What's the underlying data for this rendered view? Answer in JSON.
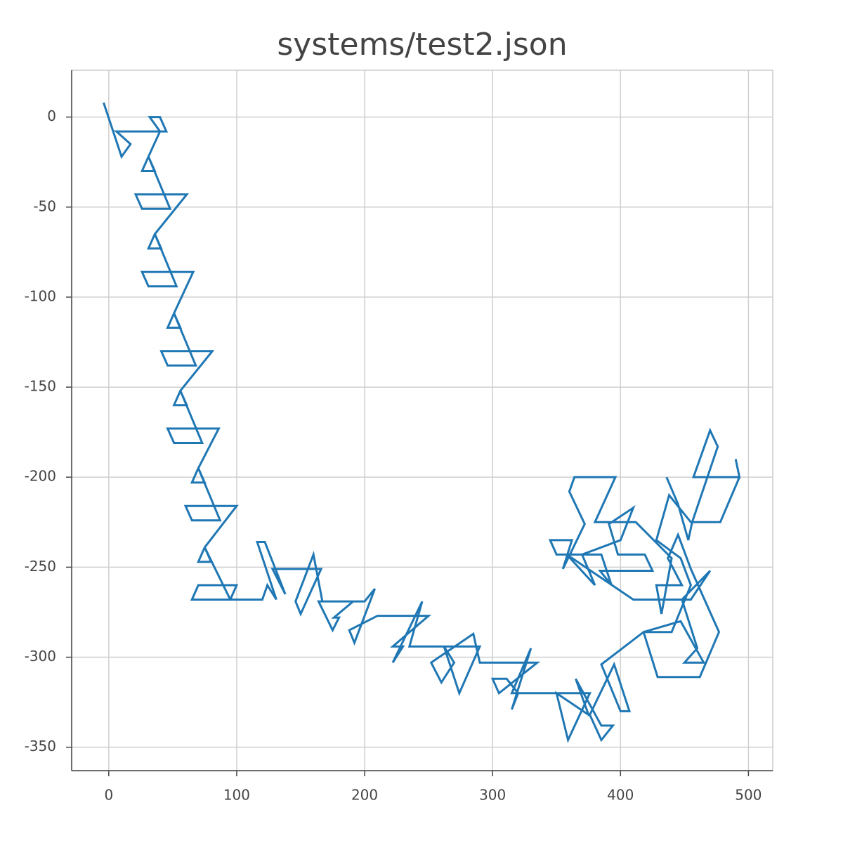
{
  "chart_data": {
    "type": "line",
    "title": "systems/test2.json",
    "x": [
      -4,
      10,
      17,
      6,
      45,
      40,
      32,
      40,
      31,
      26,
      36,
      31,
      48,
      26,
      21,
      61,
      36,
      31,
      41,
      36,
      53,
      31,
      26,
      66,
      51,
      46,
      56,
      51,
      68,
      46,
      41,
      81,
      56,
      51,
      61,
      56,
      73,
      51,
      46,
      86,
      70,
      65,
      75,
      70,
      87,
      65,
      60,
      100,
      75,
      70,
      80,
      75,
      95,
      65,
      70,
      100,
      95,
      120,
      124,
      131,
      116,
      122,
      138,
      128,
      166,
      150,
      146,
      160,
      167,
      191,
      176,
      180,
      175,
      164,
      200,
      208,
      192,
      188,
      210,
      250,
      222,
      230,
      222,
      245,
      235,
      290,
      274,
      262,
      270,
      260,
      252,
      285,
      290,
      335,
      305,
      300,
      311,
      320,
      315,
      330,
      315,
      376,
      359,
      350,
      375,
      365,
      385,
      394,
      385,
      376,
      395,
      407,
      400,
      385,
      418,
      429,
      462,
      477,
      455,
      445,
      437,
      448,
      428,
      432,
      440,
      412,
      380,
      396,
      364,
      360,
      372,
      355,
      362,
      345,
      350,
      385,
      393,
      384,
      425,
      419,
      398,
      391,
      410,
      400,
      370,
      380,
      358,
      410,
      455,
      470,
      448,
      460,
      450,
      465,
      447,
      418,
      440,
      455,
      447,
      428,
      438,
      455,
      478,
      493,
      490,
      493,
      457,
      470,
      476,
      456,
      453,
      445,
      436
    ],
    "series": [
      {
        "name": "systems/test2.json",
        "color": "#1f77b4",
        "values": [
          8,
          -22,
          -15,
          -8,
          -8,
          0,
          0,
          -8,
          -22,
          -30,
          -30,
          -22,
          -51,
          -51,
          -43,
          -43,
          -65,
          -73,
          -73,
          -65,
          -94,
          -94,
          -86,
          -86,
          -109,
          -117,
          -117,
          -109,
          -138,
          -138,
          -130,
          -130,
          -152,
          -160,
          -160,
          -152,
          -181,
          -181,
          -173,
          -173,
          -195,
          -203,
          -203,
          -195,
          -224,
          -224,
          -216,
          -216,
          -239,
          -247,
          -247,
          -239,
          -268,
          -268,
          -260,
          -260,
          -268,
          -268,
          -260,
          -268,
          -236,
          -236,
          -265,
          -251,
          -251,
          -276,
          -269,
          -243,
          -269,
          -269,
          -278,
          -278,
          -285,
          -269,
          -269,
          -262,
          -292,
          -285,
          -277,
          -277,
          -294,
          -294,
          -303,
          -269,
          -294,
          -294,
          -320,
          -294,
          -303,
          -314,
          -303,
          -287,
          -303,
          -303,
          -320,
          -312,
          -312,
          -320,
          -329,
          -295,
          -320,
          -320,
          -346,
          -320,
          -332,
          -312,
          -338,
          -338,
          -346,
          -332,
          -304,
          -330,
          -330,
          -304,
          -286,
          -311,
          -311,
          -286,
          -251,
          -232,
          -245,
          -260,
          -260,
          -276,
          -245,
          -225,
          -225,
          -200,
          -200,
          -208,
          -226,
          -251,
          -235,
          -235,
          -243,
          -243,
          -260,
          -252,
          -252,
          -243,
          -243,
          -226,
          -217,
          -235,
          -243,
          -260,
          -243,
          -268,
          -268,
          -252,
          -268,
          -295,
          -303,
          -303,
          -280,
          -286,
          -286,
          -260,
          -245,
          -235,
          -210,
          -225,
          -225,
          -200,
          -190,
          -200,
          -200,
          -174,
          -183,
          -225,
          -235,
          -215,
          -200
        ]
      }
    ],
    "xlim": [
      -29,
      519
    ],
    "ylim": [
      -363,
      26
    ],
    "xticks": [
      0,
      100,
      200,
      300,
      400,
      500
    ],
    "yticks": [
      0,
      -50,
      -100,
      -150,
      -200,
      -250,
      -300,
      -350
    ],
    "grid": true
  }
}
